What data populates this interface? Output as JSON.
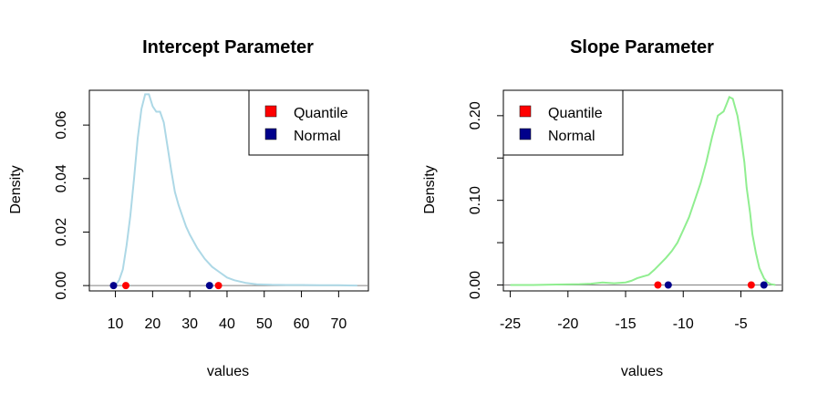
{
  "chart_data": [
    {
      "type": "line",
      "title": "Intercept Parameter",
      "xlabel": "values",
      "ylabel": "Density",
      "xlim": [
        3,
        78
      ],
      "ylim": [
        -0.002,
        0.073
      ],
      "xticks": [
        10,
        20,
        30,
        40,
        50,
        60,
        70
      ],
      "yticks": [
        0.0,
        0.02,
        0.04,
        0.06
      ],
      "ytick_labels": [
        "0.00",
        "0.02",
        "0.04",
        "0.06"
      ],
      "line_color": "#ADD8E6",
      "series": [
        {
          "x": [
            10,
            11,
            12,
            13,
            14,
            15,
            16,
            17,
            18,
            19,
            20,
            21,
            22,
            23,
            24,
            25,
            26,
            27,
            28,
            29,
            30,
            32,
            34,
            36,
            38,
            40,
            42,
            45,
            48,
            52,
            56,
            60,
            65,
            70,
            75
          ],
          "y": [
            0.0,
            0.002,
            0.006,
            0.015,
            0.026,
            0.04,
            0.055,
            0.066,
            0.0715,
            0.0715,
            0.067,
            0.065,
            0.065,
            0.061,
            0.052,
            0.043,
            0.035,
            0.03,
            0.026,
            0.022,
            0.019,
            0.014,
            0.01,
            0.007,
            0.005,
            0.003,
            0.002,
            0.001,
            0.0005,
            0.0003,
            0.0002,
            0.0002,
            0.0001,
            0.0001,
            0.0
          ]
        }
      ],
      "points": [
        {
          "legend": "Normal",
          "x": 9.5,
          "y": 0
        },
        {
          "legend": "Quantile",
          "x": 12.8,
          "y": 0
        },
        {
          "legend": "Normal",
          "x": 35.3,
          "y": 0
        },
        {
          "legend": "Quantile",
          "x": 37.7,
          "y": 0
        }
      ],
      "legend": {
        "position": "top-right",
        "items": [
          {
            "label": "Quantile",
            "color": "#FF0000"
          },
          {
            "label": "Normal",
            "color": "#00008B"
          }
        ]
      }
    },
    {
      "type": "line",
      "title": "Slope Parameter",
      "xlabel": "values",
      "ylabel": "Density",
      "xlim": [
        -25.6,
        -1.4
      ],
      "ylim": [
        -0.007,
        0.23
      ],
      "xticks": [
        -25,
        -20,
        -15,
        -10,
        -5
      ],
      "yticks": [
        0.0,
        0.05,
        0.1,
        0.15,
        0.2
      ],
      "ytick_labels": [
        "0.00",
        "",
        "0.10",
        "",
        "0.20"
      ],
      "line_color": "#90EE90",
      "series": [
        {
          "x": [
            -25,
            -23,
            -21,
            -19,
            -18,
            -17,
            -16,
            -15,
            -14.5,
            -14,
            -13.5,
            -13,
            -12.5,
            -12,
            -11.5,
            -11,
            -10.5,
            -10,
            -9.5,
            -9,
            -8.5,
            -8,
            -7.5,
            -7,
            -6.5,
            -6.2,
            -6,
            -5.7,
            -5.3,
            -5,
            -4.7,
            -4.5,
            -4.2,
            -4,
            -3.7,
            -3.4,
            -3,
            -2.7,
            -2.4,
            -2
          ],
          "y": [
            0.0,
            0.0,
            0.0005,
            0.001,
            0.0015,
            0.003,
            0.002,
            0.003,
            0.005,
            0.008,
            0.01,
            0.012,
            0.018,
            0.025,
            0.032,
            0.04,
            0.05,
            0.065,
            0.08,
            0.1,
            0.12,
            0.145,
            0.175,
            0.2,
            0.205,
            0.215,
            0.222,
            0.22,
            0.2,
            0.175,
            0.145,
            0.115,
            0.085,
            0.06,
            0.038,
            0.02,
            0.008,
            0.003,
            0.001,
            0.0
          ]
        }
      ],
      "points": [
        {
          "legend": "Quantile",
          "x": -12.2,
          "y": 0
        },
        {
          "legend": "Normal",
          "x": -11.3,
          "y": 0
        },
        {
          "legend": "Quantile",
          "x": -4.1,
          "y": 0
        },
        {
          "legend": "Normal",
          "x": -3.0,
          "y": 0
        }
      ],
      "legend": {
        "position": "top-left",
        "items": [
          {
            "label": "Quantile",
            "color": "#FF0000"
          },
          {
            "label": "Normal",
            "color": "#00008B"
          }
        ]
      }
    }
  ]
}
